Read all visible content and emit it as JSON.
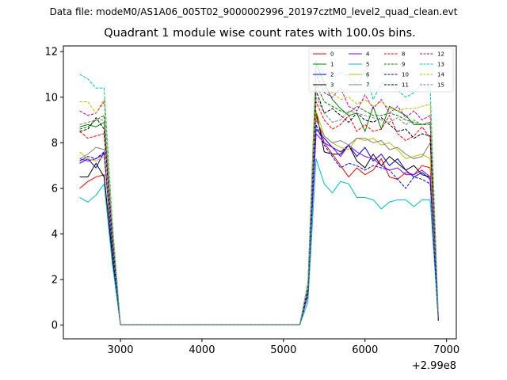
{
  "figure": {
    "suptitle": "Data file: modeM0/AS1A06_005T02_9000002996_20197cztM0_level2_quad_clean.evt",
    "title": "Quadrant 1 module wise count rates with 100.0s bins.",
    "x_offset_label": "+2.99e8"
  },
  "chart_data": {
    "type": "line",
    "title": "Quadrant 1 module wise count rates with 100.0s bins.",
    "xlabel": "",
    "ylabel": "",
    "x_offset_text": "+2.99e8",
    "xlim": [
      2300,
      7120
    ],
    "ylim": [
      -0.6,
      12.25
    ],
    "xticks": [
      3000,
      4000,
      5000,
      6000,
      7000
    ],
    "yticks": [
      0,
      2,
      4,
      6,
      8,
      10,
      12
    ],
    "legend_position": "top-right",
    "grid": false,
    "x": [
      2500,
      2600,
      2700,
      2800,
      2900,
      3000,
      3100,
      3200,
      3300,
      3400,
      3500,
      3600,
      3700,
      3800,
      3900,
      4000,
      4100,
      4200,
      4300,
      4400,
      4500,
      4600,
      4700,
      4800,
      4900,
      5000,
      5100,
      5200,
      5300,
      5400,
      5500,
      5600,
      5700,
      5800,
      5900,
      6000,
      6100,
      6200,
      6300,
      6400,
      6500,
      6600,
      6700,
      6800,
      6900
    ],
    "series": [
      {
        "name": "0",
        "color": "#ff0000",
        "dash": "solid",
        "values": [
          6.0,
          6.3,
          6.5,
          6.6,
          3.0,
          0.02,
          0.02,
          0.02,
          0.02,
          0.02,
          0.02,
          0.02,
          0.02,
          0.02,
          0.02,
          0.02,
          0.02,
          0.02,
          0.02,
          0.02,
          0.02,
          0.02,
          0.02,
          0.02,
          0.02,
          0.02,
          0.02,
          0.02,
          1.3,
          9.2,
          8.0,
          7.5,
          7.0,
          6.5,
          6.9,
          6.6,
          6.8,
          7.3,
          6.5,
          6.4,
          6.7,
          6.6,
          7.0,
          6.9,
          0.2
        ]
      },
      {
        "name": "1",
        "color": "#008000",
        "dash": "solid",
        "values": [
          8.7,
          8.8,
          8.7,
          8.9,
          4.0,
          0.02,
          0.02,
          0.02,
          0.02,
          0.02,
          0.02,
          0.02,
          0.02,
          0.02,
          0.02,
          0.02,
          0.02,
          0.02,
          0.02,
          0.02,
          0.02,
          0.02,
          0.02,
          0.02,
          0.02,
          0.02,
          0.02,
          0.02,
          1.7,
          11.5,
          10.6,
          9.9,
          9.5,
          9.2,
          9.3,
          8.5,
          9.6,
          8.6,
          9.6,
          9.4,
          9.2,
          8.8,
          8.8,
          8.9,
          0.3
        ]
      },
      {
        "name": "2",
        "color": "#0000ff",
        "dash": "solid",
        "values": [
          7.1,
          7.3,
          6.9,
          7.6,
          3.2,
          0.02,
          0.02,
          0.02,
          0.02,
          0.02,
          0.02,
          0.02,
          0.02,
          0.02,
          0.02,
          0.02,
          0.02,
          0.02,
          0.02,
          0.02,
          0.02,
          0.02,
          0.02,
          0.02,
          0.02,
          0.02,
          0.02,
          0.02,
          1.4,
          8.6,
          8.2,
          7.8,
          7.6,
          7.9,
          7.4,
          7.8,
          7.2,
          7.5,
          7.0,
          7.3,
          6.8,
          6.5,
          6.7,
          6.4,
          0.2
        ]
      },
      {
        "name": "3",
        "color": "#000000",
        "dash": "solid",
        "values": [
          6.5,
          6.5,
          7.1,
          6.5,
          3.0,
          0.02,
          0.02,
          0.02,
          0.02,
          0.02,
          0.02,
          0.02,
          0.02,
          0.02,
          0.02,
          0.02,
          0.02,
          0.02,
          0.02,
          0.02,
          0.02,
          0.02,
          0.02,
          0.02,
          0.02,
          0.02,
          0.02,
          0.02,
          1.3,
          9.4,
          7.6,
          7.5,
          7.5,
          7.9,
          7.2,
          6.9,
          7.5,
          7.0,
          7.4,
          7.1,
          6.8,
          7.0,
          6.6,
          6.5,
          0.2
        ]
      },
      {
        "name": "4",
        "color": "#8000ff",
        "dash": "solid",
        "values": [
          7.3,
          7.2,
          7.3,
          7.5,
          3.3,
          0.02,
          0.02,
          0.02,
          0.02,
          0.02,
          0.02,
          0.02,
          0.02,
          0.02,
          0.02,
          0.02,
          0.02,
          0.02,
          0.02,
          0.02,
          0.02,
          0.02,
          0.02,
          0.02,
          0.02,
          0.02,
          0.02,
          0.02,
          1.3,
          8.4,
          8.0,
          7.8,
          7.4,
          7.9,
          7.6,
          7.4,
          7.3,
          7.0,
          6.8,
          6.9,
          6.6,
          6.6,
          6.8,
          6.5,
          0.2
        ]
      },
      {
        "name": "5",
        "color": "#00bfbf",
        "dash": "solid",
        "values": [
          5.6,
          5.4,
          5.7,
          6.2,
          2.7,
          0.02,
          0.02,
          0.02,
          0.02,
          0.02,
          0.02,
          0.02,
          0.02,
          0.02,
          0.02,
          0.02,
          0.02,
          0.02,
          0.02,
          0.02,
          0.02,
          0.02,
          0.02,
          0.02,
          0.02,
          0.02,
          0.02,
          0.02,
          1.0,
          7.3,
          6.2,
          5.8,
          6.3,
          6.2,
          5.6,
          5.6,
          5.5,
          5.1,
          5.4,
          5.5,
          5.5,
          5.2,
          5.5,
          5.5,
          0.2
        ]
      },
      {
        "name": "6",
        "color": "#bfbf00",
        "dash": "solid",
        "values": [
          7.6,
          7.3,
          7.2,
          7.4,
          3.4,
          0.02,
          0.02,
          0.02,
          0.02,
          0.02,
          0.02,
          0.02,
          0.02,
          0.02,
          0.02,
          0.02,
          0.02,
          0.02,
          0.02,
          0.02,
          0.02,
          0.02,
          0.02,
          0.02,
          0.02,
          0.02,
          0.02,
          0.02,
          1.4,
          9.4,
          8.3,
          8.0,
          7.8,
          7.7,
          8.2,
          8.1,
          8.2,
          7.9,
          8.0,
          7.7,
          7.3,
          7.4,
          7.5,
          7.3,
          0.2
        ]
      },
      {
        "name": "7",
        "color": "#808080",
        "dash": "solid",
        "values": [
          7.3,
          7.5,
          7.8,
          7.7,
          3.5,
          0.02,
          0.02,
          0.02,
          0.02,
          0.02,
          0.02,
          0.02,
          0.02,
          0.02,
          0.02,
          0.02,
          0.02,
          0.02,
          0.02,
          0.02,
          0.02,
          0.02,
          0.02,
          0.02,
          0.02,
          0.02,
          0.02,
          0.02,
          1.4,
          9.0,
          8.3,
          8.0,
          8.1,
          7.9,
          8.2,
          8.2,
          8.0,
          8.1,
          7.7,
          7.8,
          7.5,
          7.3,
          7.4,
          8.0,
          0.2
        ]
      },
      {
        "name": "8",
        "color": "#ff0000",
        "dash": "dashed",
        "values": [
          8.5,
          8.2,
          8.3,
          8.4,
          3.8,
          0.02,
          0.02,
          0.02,
          0.02,
          0.02,
          0.02,
          0.02,
          0.02,
          0.02,
          0.02,
          0.02,
          0.02,
          0.02,
          0.02,
          0.02,
          0.02,
          0.02,
          0.02,
          0.02,
          0.02,
          0.02,
          0.02,
          0.02,
          1.6,
          9.8,
          9.0,
          8.6,
          8.8,
          9.2,
          8.5,
          8.8,
          8.5,
          8.6,
          9.2,
          8.4,
          8.1,
          8.3,
          8.7,
          8.2,
          0.2
        ]
      },
      {
        "name": "9",
        "color": "#008000",
        "dash": "dashed",
        "values": [
          8.6,
          8.7,
          9.0,
          9.2,
          4.0,
          0.02,
          0.02,
          0.02,
          0.02,
          0.02,
          0.02,
          0.02,
          0.02,
          0.02,
          0.02,
          0.02,
          0.02,
          0.02,
          0.02,
          0.02,
          0.02,
          0.02,
          0.02,
          0.02,
          0.02,
          0.02,
          0.02,
          0.02,
          1.7,
          10.6,
          9.8,
          9.6,
          9.4,
          9.3,
          9.6,
          9.4,
          9.2,
          9.2,
          9.3,
          9.2,
          9.0,
          8.9,
          8.8,
          8.8,
          0.3
        ]
      },
      {
        "name": "10",
        "color": "#0000ff",
        "dash": "dashed",
        "values": [
          7.2,
          7.4,
          7.3,
          7.6,
          3.3,
          0.02,
          0.02,
          0.02,
          0.02,
          0.02,
          0.02,
          0.02,
          0.02,
          0.02,
          0.02,
          0.02,
          0.02,
          0.02,
          0.02,
          0.02,
          0.02,
          0.02,
          0.02,
          0.02,
          0.02,
          0.02,
          0.02,
          0.02,
          1.4,
          8.8,
          7.9,
          7.4,
          6.9,
          7.1,
          7.0,
          6.8,
          7.0,
          6.9,
          6.8,
          6.4,
          6.0,
          6.5,
          6.4,
          6.2,
          0.2
        ]
      },
      {
        "name": "11",
        "color": "#000000",
        "dash": "dashed",
        "values": [
          8.5,
          8.6,
          9.1,
          8.6,
          3.9,
          0.02,
          0.02,
          0.02,
          0.02,
          0.02,
          0.02,
          0.02,
          0.02,
          0.02,
          0.02,
          0.02,
          0.02,
          0.02,
          0.02,
          0.02,
          0.02,
          0.02,
          0.02,
          0.02,
          0.02,
          0.02,
          0.02,
          0.02,
          1.6,
          10.3,
          9.3,
          9.5,
          9.2,
          8.9,
          9.3,
          9.0,
          8.9,
          9.1,
          8.8,
          8.5,
          8.6,
          8.2,
          8.4,
          8.3,
          0.3
        ]
      },
      {
        "name": "12",
        "color": "#bf00bf",
        "dash": "dashed",
        "values": [
          9.4,
          9.2,
          9.3,
          9.8,
          4.3,
          0.02,
          0.02,
          0.02,
          0.02,
          0.02,
          0.02,
          0.02,
          0.02,
          0.02,
          0.02,
          0.02,
          0.02,
          0.02,
          0.02,
          0.02,
          0.02,
          0.02,
          0.02,
          0.02,
          0.02,
          0.02,
          0.02,
          0.02,
          1.8,
          11.0,
          10.2,
          10.0,
          10.4,
          9.6,
          9.4,
          10.1,
          9.5,
          9.9,
          9.3,
          9.6,
          9.1,
          9.4,
          9.0,
          9.2,
          0.3
        ]
      },
      {
        "name": "13",
        "color": "#00bfbf",
        "dash": "dashed",
        "values": [
          11.0,
          10.8,
          10.4,
          10.4,
          4.6,
          0.02,
          0.02,
          0.02,
          0.02,
          0.02,
          0.02,
          0.02,
          0.02,
          0.02,
          0.02,
          0.02,
          0.02,
          0.02,
          0.02,
          0.02,
          0.02,
          0.02,
          0.02,
          0.02,
          0.02,
          0.02,
          0.02,
          0.02,
          1.9,
          11.6,
          11.0,
          10.8,
          11.1,
          10.9,
          10.5,
          11.2,
          9.9,
          10.6,
          10.7,
          10.3,
          10.0,
          10.2,
          10.6,
          10.4,
          0.4
        ]
      },
      {
        "name": "14",
        "color": "#bfbf00",
        "dash": "dashed",
        "values": [
          9.8,
          9.8,
          9.3,
          9.9,
          4.4,
          0.02,
          0.02,
          0.02,
          0.02,
          0.02,
          0.02,
          0.02,
          0.02,
          0.02,
          0.02,
          0.02,
          0.02,
          0.02,
          0.02,
          0.02,
          0.02,
          0.02,
          0.02,
          0.02,
          0.02,
          0.02,
          0.02,
          0.02,
          1.8,
          11.2,
          10.4,
          10.2,
          9.9,
          10.0,
          9.7,
          9.9,
          9.6,
          9.8,
          9.5,
          9.4,
          9.5,
          9.5,
          9.6,
          9.7,
          0.3
        ]
      },
      {
        "name": "15",
        "color": "#808080",
        "dash": "dashed",
        "values": [
          8.8,
          8.9,
          9.0,
          9.0,
          4.0,
          0.02,
          0.02,
          0.02,
          0.02,
          0.02,
          0.02,
          0.02,
          0.02,
          0.02,
          0.02,
          0.02,
          0.02,
          0.02,
          0.02,
          0.02,
          0.02,
          0.02,
          0.02,
          0.02,
          0.02,
          0.02,
          0.02,
          0.02,
          1.6,
          10.0,
          9.3,
          8.9,
          9.0,
          9.4,
          9.3,
          9.2,
          9.1,
          9.0,
          8.9,
          9.1,
          8.8,
          9.0,
          8.8,
          8.9,
          0.3
        ]
      }
    ]
  }
}
